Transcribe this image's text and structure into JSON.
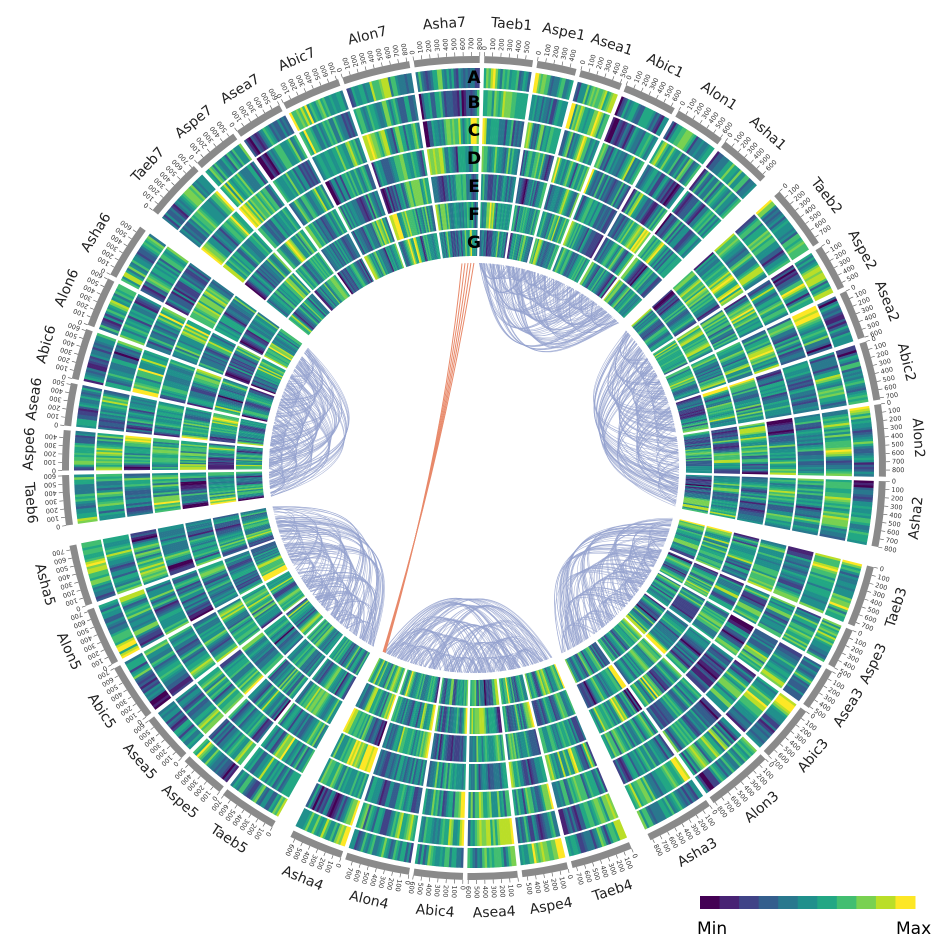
{
  "colors": {
    "ideogram": "#8a8a8a",
    "link_main": "#95a3cf",
    "link_highlight": "#e8896a",
    "palette": [
      "#440154",
      "#482374",
      "#404387",
      "#345e8d",
      "#29788e",
      "#20908c",
      "#22a784",
      "#42be71",
      "#79d151",
      "#bade28",
      "#fde725"
    ]
  },
  "chromosome_order": [
    "Taeb1",
    "Aspe1",
    "Asea1",
    "Abic1",
    "Alon1",
    "Asha1",
    "Taeb2",
    "Aspe2",
    "Asea2",
    "Abic2",
    "Alon2",
    "Asha2",
    "Taeb3",
    "Aspe3",
    "Asea3",
    "Abic3",
    "Alon3",
    "Asha3",
    "Taeb4",
    "Aspe4",
    "Asea4",
    "Abic4",
    "Alon4",
    "Asha4",
    "Taeb5",
    "Aspe5",
    "Asea5",
    "Abic5",
    "Alon5",
    "Asha5",
    "Taeb6",
    "Aspe6",
    "Asea6",
    "Abic6",
    "Alon6",
    "Asha6",
    "Taeb7",
    "Aspe7",
    "Asea7",
    "Abic7",
    "Alon7",
    "Asha7"
  ],
  "chromosome_lengths_mb": {
    "Taeb1": 590,
    "Aspe1": 480,
    "Asea1": 520,
    "Abic1": 650,
    "Alon1": 620,
    "Asha1": 640,
    "Taeb2": 780,
    "Aspe2": 560,
    "Asea2": 600,
    "Abic2": 720,
    "Alon2": 880,
    "Asha2": 800,
    "Taeb3": 750,
    "Aspe3": 500,
    "Asea3": 520,
    "Abic3": 700,
    "Alon3": 820,
    "Asha3": 830,
    "Taeb4": 750,
    "Aspe4": 560,
    "Asea4": 610,
    "Abic4": 600,
    "Alon4": 790,
    "Asha4": 660,
    "Taeb5": 710,
    "Aspe5": 560,
    "Asea5": 600,
    "Abic5": 700,
    "Alon5": 720,
    "Asha5": 750,
    "Taeb6": 610,
    "Aspe6": 490,
    "Asea6": 520,
    "Abic6": 620,
    "Alon6": 610,
    "Asha6": 680,
    "Taeb7": 730,
    "Aspe7": 560,
    "Asea7": 600,
    "Abic7": 720,
    "Alon7": 830,
    "Asha7": 800
  },
  "track_letters": [
    "A",
    "B",
    "C",
    "D",
    "E",
    "F",
    "G"
  ],
  "legend": {
    "min_label": "Min",
    "max_label": "Max"
  }
}
